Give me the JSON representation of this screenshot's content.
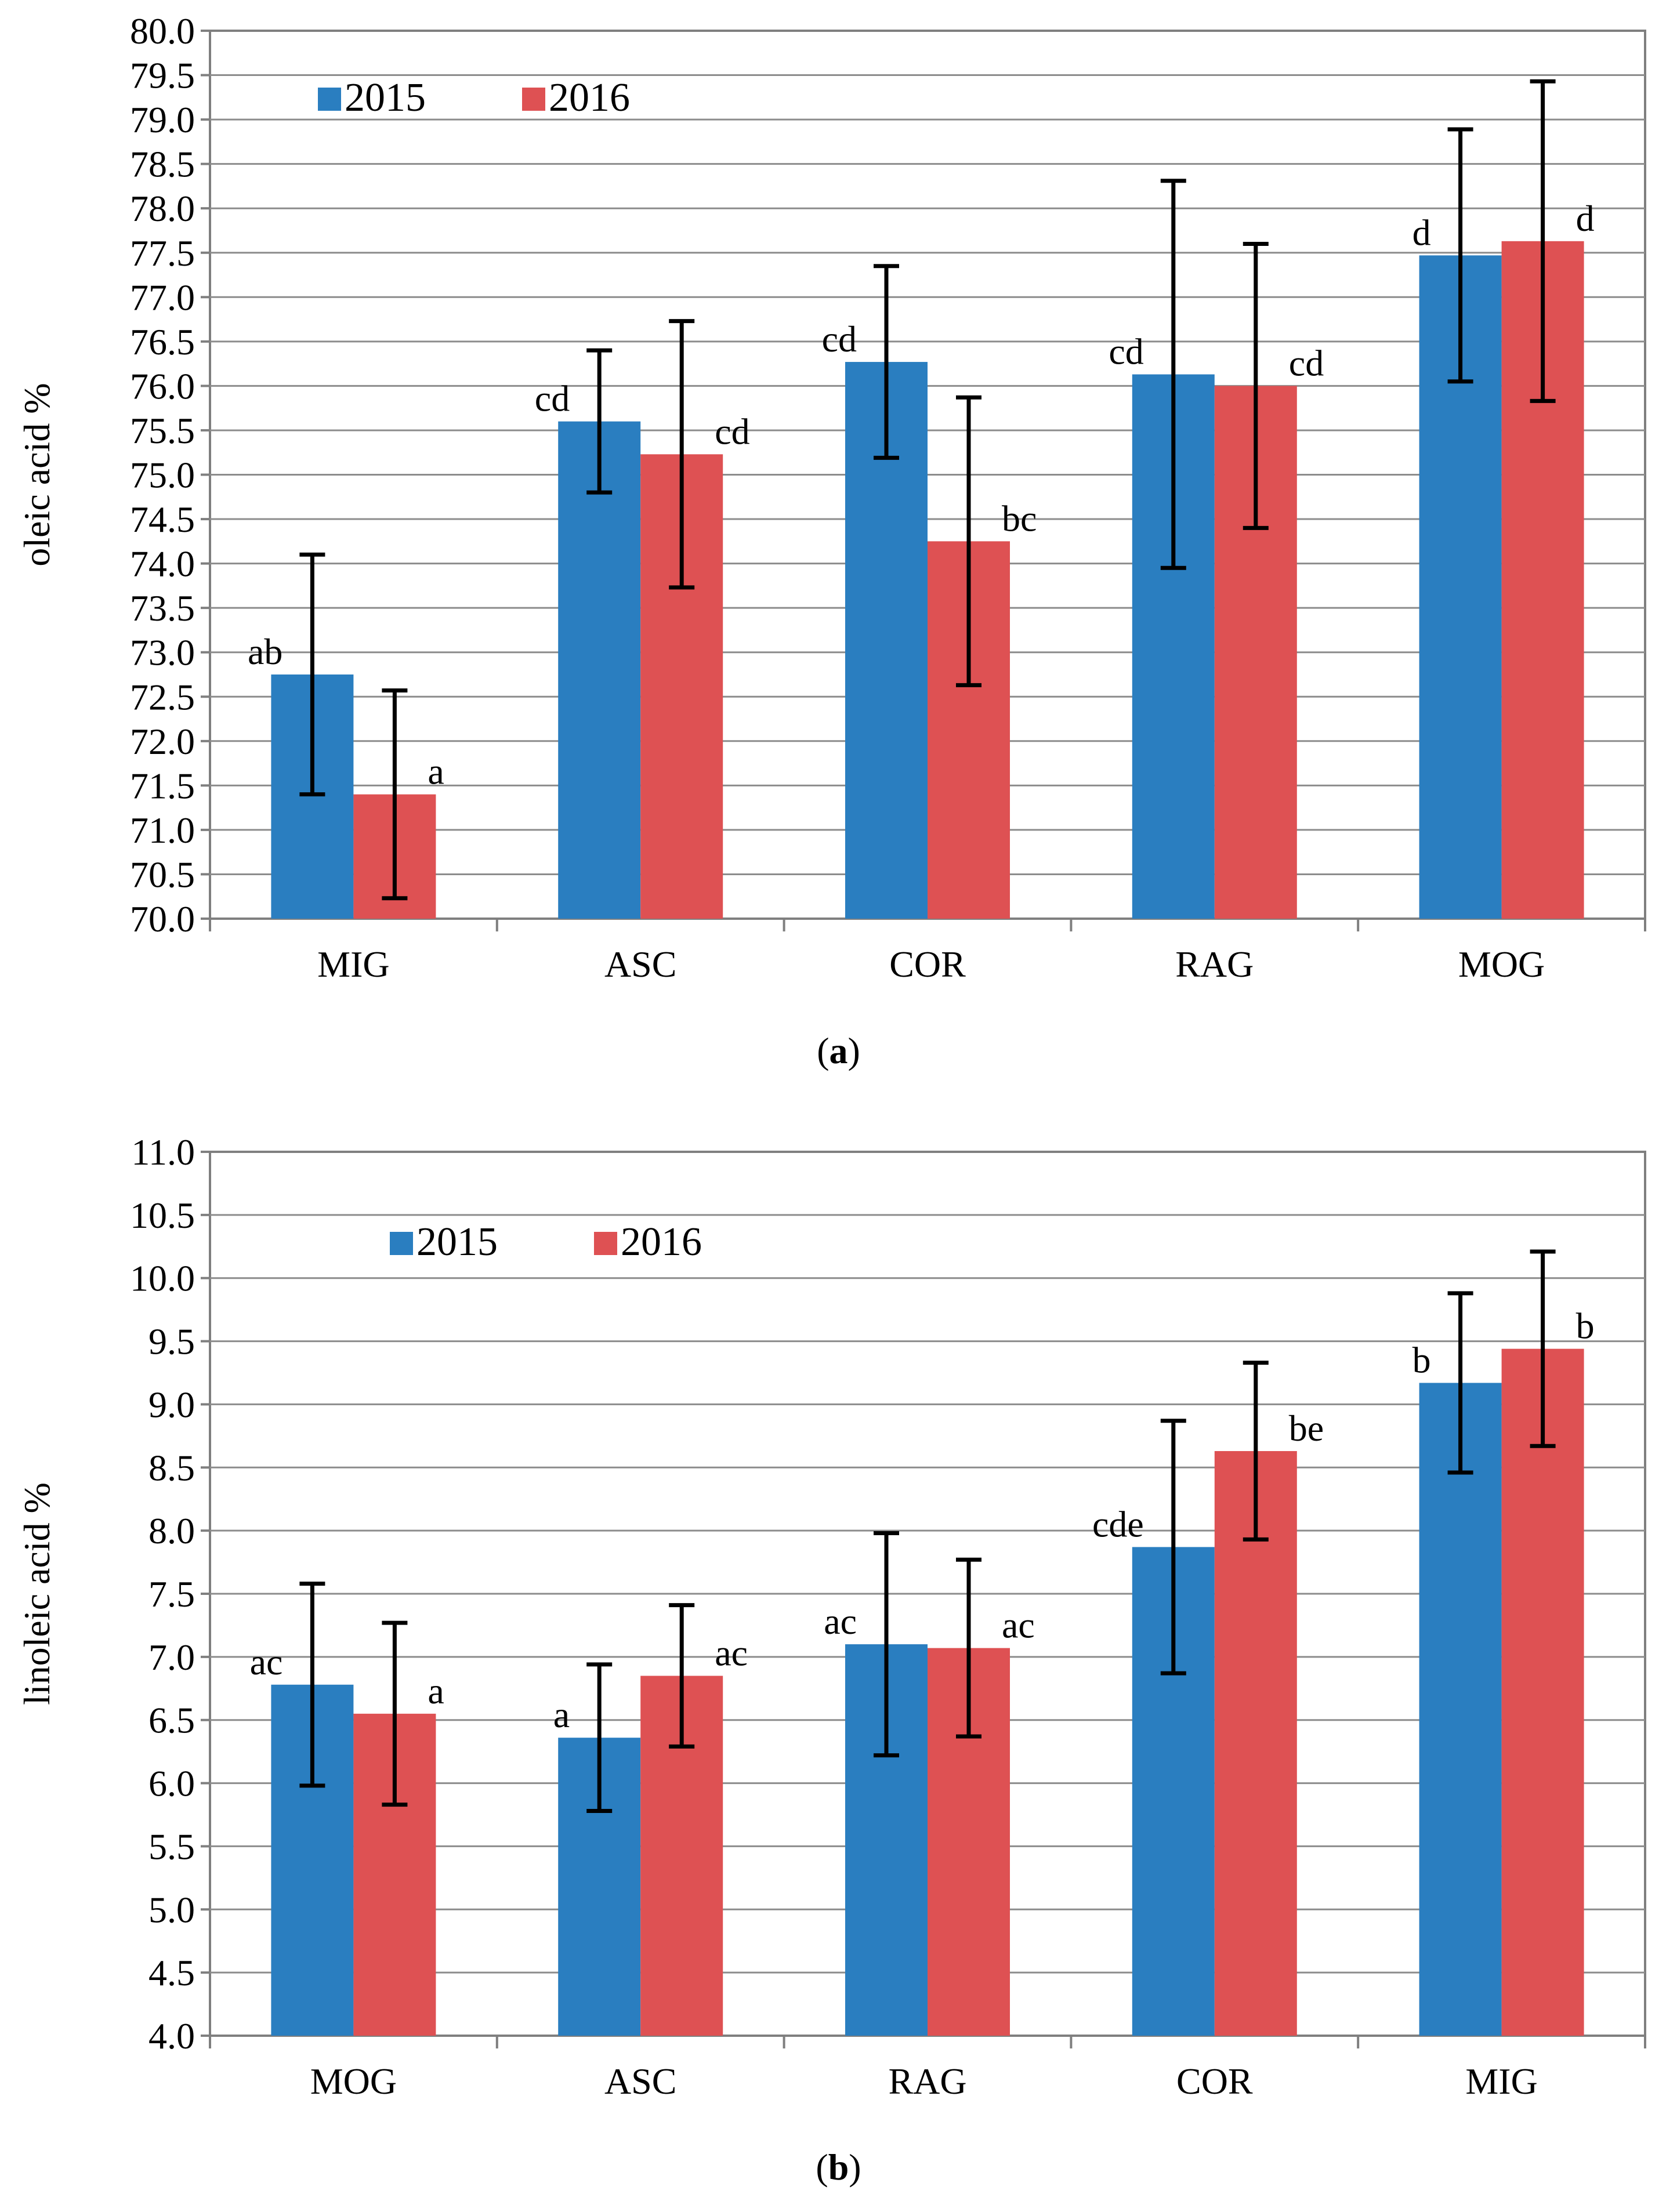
{
  "colors": {
    "y2015": "#2a7ec0",
    "y2016": "#de5153",
    "grid": "#8c8c8c",
    "axis": "#7f7f7f"
  },
  "captions": {
    "a": "a",
    "b": "b"
  },
  "chart_data": [
    {
      "id": "a",
      "type": "bar",
      "title": "",
      "xlabel": "",
      "ylabel": "oleic acid %",
      "ylim": [
        70.0,
        80.0
      ],
      "ytick_step": 0.5,
      "ytick_labels": [
        "70.0",
        "70.5",
        "71.0",
        "71.5",
        "72.0",
        "72.5",
        "73.0",
        "73.5",
        "74.0",
        "74.5",
        "75.0",
        "75.5",
        "76.0",
        "76.5",
        "77.0",
        "77.5",
        "78.0",
        "78.5",
        "79.0",
        "79.5",
        "80.0"
      ],
      "grid": true,
      "legend": "top-left",
      "categories": [
        "MIG",
        "ASC",
        "COR",
        "RAG",
        "MOG"
      ],
      "series": [
        {
          "name": "2015",
          "values": [
            72.75,
            75.6,
            76.27,
            76.13,
            77.47
          ],
          "errors": [
            1.35,
            0.8,
            1.08,
            2.18,
            1.42
          ],
          "labels": [
            "ab",
            "cd",
            "cd",
            "cd",
            "d"
          ]
        },
        {
          "name": "2016",
          "values": [
            71.4,
            75.23,
            74.25,
            76.0,
            77.63
          ],
          "errors": [
            1.17,
            1.5,
            1.62,
            1.6,
            1.8
          ],
          "labels": [
            "a",
            "cd",
            "bc",
            "cd",
            "d"
          ]
        }
      ]
    },
    {
      "id": "b",
      "type": "bar",
      "title": "",
      "xlabel": "",
      "ylabel": "linoleic acid %",
      "ylim": [
        4.0,
        11.0
      ],
      "ytick_step": 0.5,
      "ytick_labels": [
        "4.0",
        "4.5",
        "5.0",
        "5.5",
        "6.0",
        "6.5",
        "7.0",
        "7.5",
        "8.0",
        "8.5",
        "9.0",
        "9.5",
        "10.0",
        "10.5",
        "11.0"
      ],
      "grid": true,
      "legend": "top-left",
      "categories": [
        "MOG",
        "ASC",
        "RAG",
        "COR",
        "MIG"
      ],
      "series": [
        {
          "name": "2015",
          "values": [
            6.78,
            6.36,
            7.1,
            7.87,
            9.17
          ],
          "errors": [
            0.8,
            0.58,
            0.88,
            1.0,
            0.71
          ],
          "labels": [
            "ac",
            "a",
            "ac",
            "cde",
            "b"
          ]
        },
        {
          "name": "2016",
          "values": [
            6.55,
            6.85,
            7.07,
            8.63,
            9.44
          ],
          "errors": [
            0.72,
            0.56,
            0.7,
            0.7,
            0.77
          ],
          "labels": [
            "a",
            "ac",
            "ac",
            "be",
            "b"
          ]
        }
      ]
    }
  ]
}
